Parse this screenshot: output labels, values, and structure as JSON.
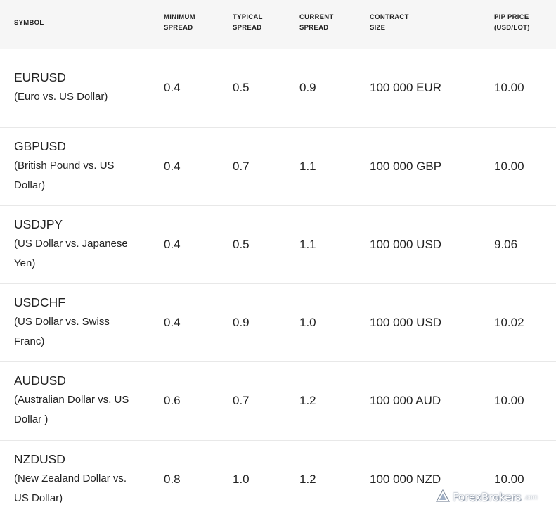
{
  "header": {
    "symbol": [
      "SYMBOL"
    ],
    "min_spread": [
      "MINIMUM",
      "SPREAD"
    ],
    "typ_spread": [
      "TYPICAL",
      "SPREAD"
    ],
    "cur_spread": [
      "CURRENT",
      "SPREAD"
    ],
    "contract": [
      "CONTRACT",
      "SIZE"
    ],
    "pip": [
      "PIP PRICE",
      "(USD/LOT)"
    ]
  },
  "rows": [
    {
      "code": "EURUSD",
      "desc": "(Euro vs. US Dollar)",
      "min": "0.4",
      "typ": "0.5",
      "cur": "0.9",
      "size": "100 000 EUR",
      "pip": "10.00"
    },
    {
      "code": "GBPUSD",
      "desc": "(British Pound vs. US Dollar)",
      "min": "0.4",
      "typ": "0.7",
      "cur": "1.1",
      "size": "100 000 GBP",
      "pip": "10.00"
    },
    {
      "code": "USDJPY",
      "desc": "(US Dollar vs. Japanese Yen)",
      "min": "0.4",
      "typ": "0.5",
      "cur": "1.1",
      "size": "100 000 USD",
      "pip": "9.06"
    },
    {
      "code": "USDCHF",
      "desc": "(US Dollar vs. Swiss Franc)",
      "min": "0.4",
      "typ": "0.9",
      "cur": "1.0",
      "size": "100 000 USD",
      "pip": "10.02"
    },
    {
      "code": "AUDUSD",
      "desc": "(Australian Dollar vs. US Dollar )",
      "min": "0.6",
      "typ": "0.7",
      "cur": "1.2",
      "size": "100 000 AUD",
      "pip": "10.00"
    },
    {
      "code": "NZDUSD",
      "desc": "(New Zealand Dollar vs. US Dollar)",
      "min": "0.8",
      "typ": "1.0",
      "cur": "1.2",
      "size": "100 000 NZD",
      "pip": "10.00"
    }
  ],
  "watermark": {
    "text": "ForexBrokers",
    "suffix": ".com",
    "icon": "forexbrokers-logo-icon"
  }
}
